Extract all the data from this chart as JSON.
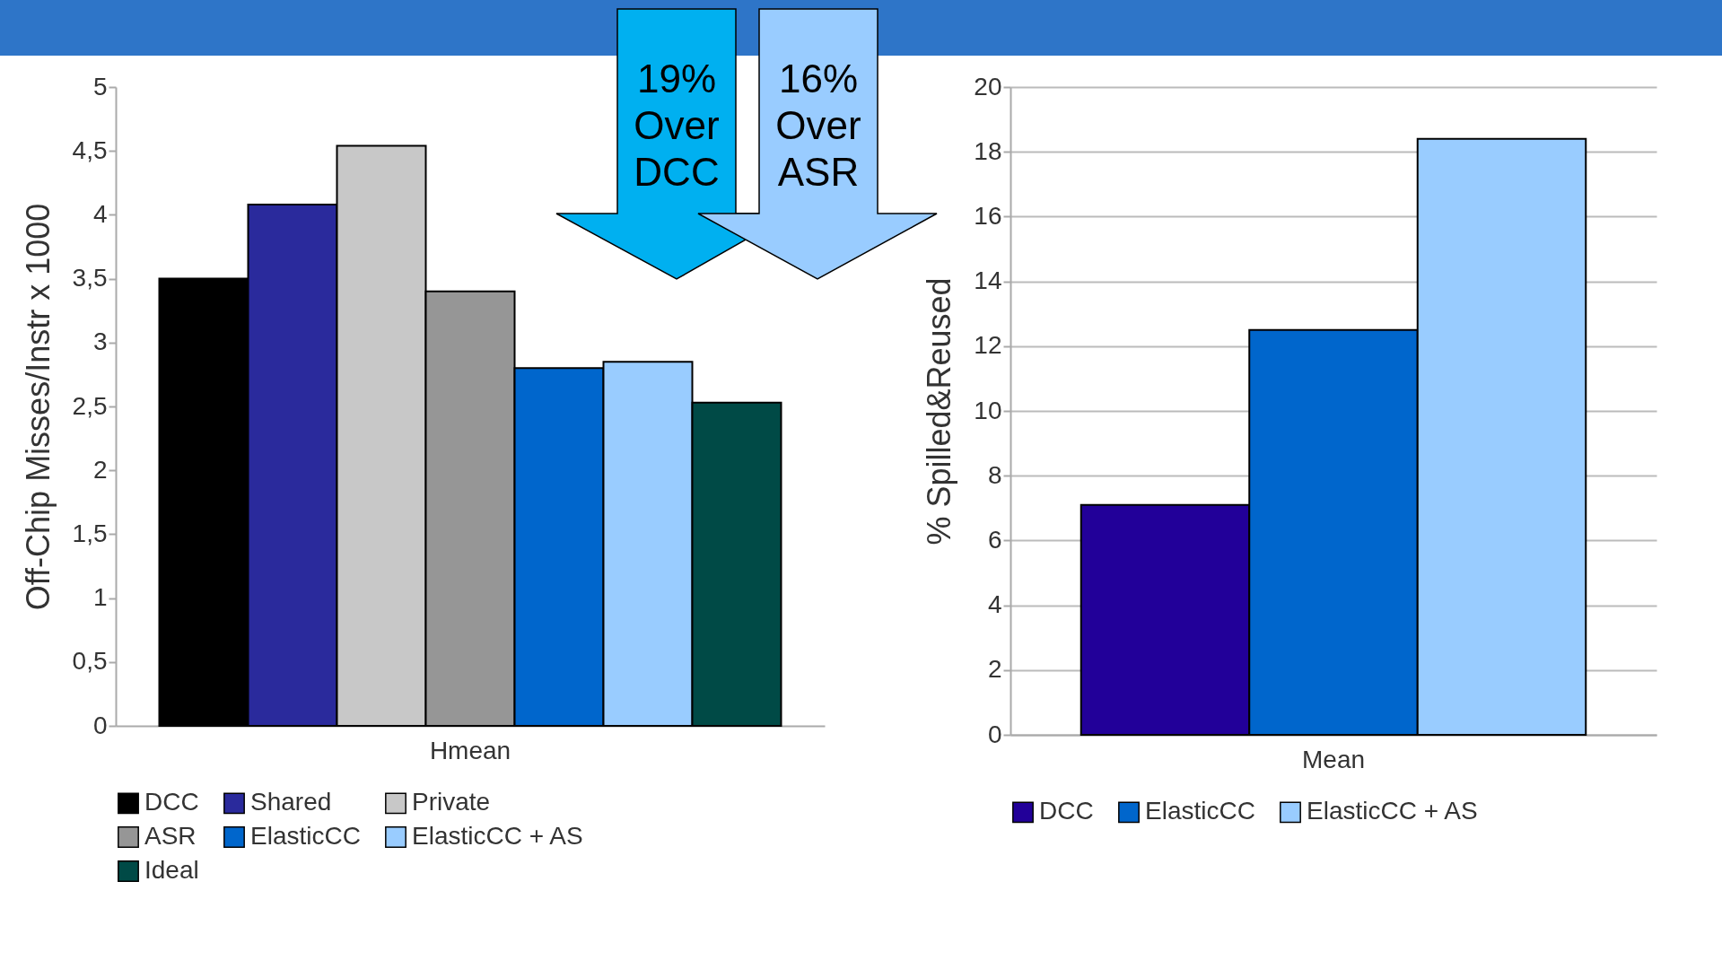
{
  "chart_data": [
    {
      "type": "bar",
      "ylabel": "Off-Chip Misses/Instr x 1000",
      "categories": [
        "Hmean"
      ],
      "series": [
        {
          "name": "DCC",
          "color": "#000000",
          "values": [
            3.5
          ]
        },
        {
          "name": "Shared",
          "color": "#2a2a9c",
          "values": [
            4.08
          ]
        },
        {
          "name": "Private",
          "color": "#c8c8c8",
          "values": [
            4.54
          ]
        },
        {
          "name": "ASR",
          "color": "#969696",
          "values": [
            3.4
          ]
        },
        {
          "name": "ElasticCC",
          "color": "#0066cc",
          "values": [
            2.8
          ]
        },
        {
          "name": "ElasticCC + AS",
          "color": "#99ccff",
          "values": [
            2.85
          ]
        },
        {
          "name": "Ideal",
          "color": "#004a46",
          "values": [
            2.53
          ]
        }
      ],
      "ylim": [
        0,
        5
      ],
      "yticks": [
        0,
        {
          "value": 0.5,
          "label": "0,5"
        },
        1,
        {
          "value": 1.5,
          "label": "1,5"
        },
        2,
        {
          "value": 2.5,
          "label": "2,5"
        },
        3,
        {
          "value": 3.5,
          "label": "3,5"
        },
        4,
        {
          "value": 4.5,
          "label": "4,5"
        },
        5
      ],
      "grid": false,
      "legend": "bottom",
      "annotations": [
        "19% Over DCC",
        "16% Over ASR"
      ]
    },
    {
      "type": "bar",
      "ylabel": "% Spilled&Reused",
      "categories": [
        "Mean"
      ],
      "series": [
        {
          "name": "DCC",
          "color": "#220099",
          "values": [
            7.1
          ]
        },
        {
          "name": "ElasticCC",
          "color": "#0066cc",
          "values": [
            12.5
          ]
        },
        {
          "name": "ElasticCC + AS",
          "color": "#99ccff",
          "values": [
            18.4
          ]
        }
      ],
      "ylim": [
        0,
        20
      ],
      "yticks": [
        0,
        2,
        4,
        6,
        8,
        10,
        12,
        14,
        16,
        18,
        20
      ],
      "grid": "y",
      "legend": "bottom"
    }
  ]
}
